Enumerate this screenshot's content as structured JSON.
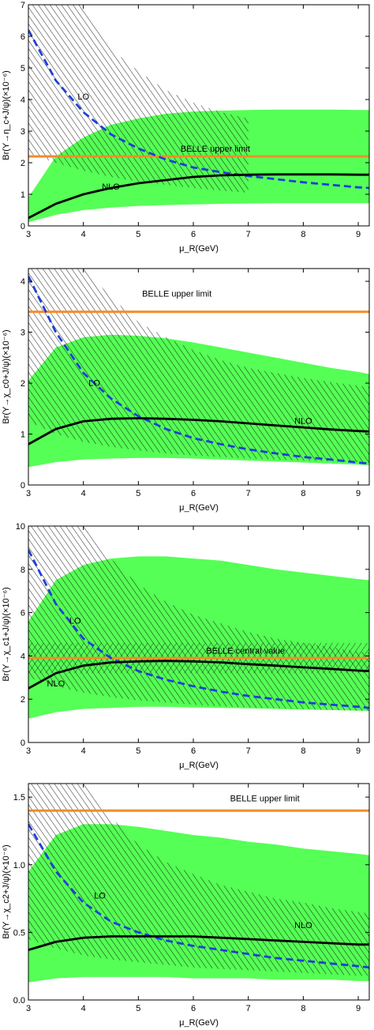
{
  "colors": {
    "nlo_band": "#55FF55",
    "lo_curve": "#1E3FD8",
    "nlo_curve": "#000000",
    "belle_line": "#F28C28",
    "hatch": "#000000"
  },
  "chart_data": [
    {
      "type": "line",
      "ylabel": "Br(Υ→η_c+J/ψ)(×10⁻⁶)",
      "xlabel": "μ_R(GeV)",
      "xlim": [
        3,
        9.2
      ],
      "ylim": [
        0,
        7
      ],
      "x_ticks": [
        "3",
        "4",
        "5",
        "6",
        "7",
        "8",
        "9"
      ],
      "y_ticks": [
        "0",
        "1",
        "2",
        "3",
        "4",
        "5",
        "6",
        "7"
      ],
      "annotations": {
        "lo": "LO",
        "nlo": "NLO",
        "belle": "BELLE  upper limit"
      },
      "annotation_pos": {
        "lo": [
          4.0,
          4.0
        ],
        "nlo": [
          4.5,
          1.15
        ],
        "belle": [
          6.4,
          2.35
        ]
      },
      "belle_value": 2.2,
      "x": [
        3.0,
        3.5,
        4.0,
        4.5,
        5.0,
        5.5,
        6.0,
        6.5,
        7.0,
        7.5,
        8.0,
        8.5,
        9.0,
        9.2
      ],
      "series": [
        {
          "name": "LO",
          "style": "dashed",
          "values": [
            6.2,
            4.6,
            3.6,
            2.9,
            2.45,
            2.1,
            1.85,
            1.7,
            1.58,
            1.48,
            1.38,
            1.3,
            1.22,
            1.2
          ]
        },
        {
          "name": "NLO",
          "style": "solid",
          "values": [
            0.25,
            0.7,
            1.0,
            1.2,
            1.35,
            1.45,
            1.55,
            1.6,
            1.62,
            1.63,
            1.63,
            1.63,
            1.62,
            1.62
          ]
        }
      ],
      "nlo_band": {
        "upper": [
          0.9,
          2.2,
          2.8,
          3.2,
          3.4,
          3.55,
          3.62,
          3.65,
          3.67,
          3.68,
          3.68,
          3.68,
          3.67,
          3.67
        ],
        "lower": [
          0.12,
          0.35,
          0.5,
          0.58,
          0.63,
          0.66,
          0.68,
          0.7,
          0.71,
          0.72,
          0.72,
          0.72,
          0.72,
          0.72
        ]
      },
      "lo_band": {
        "x": [
          3.0,
          3.5,
          4.0,
          4.5,
          5.0,
          5.5,
          6.0,
          6.5,
          7.0
        ],
        "upper": [
          7.0,
          7.0,
          7.0,
          5.6,
          4.9,
          4.3,
          3.9,
          3.6,
          3.4
        ],
        "lower": [
          2.3,
          2.0,
          1.75,
          1.55,
          1.4,
          1.3,
          1.2,
          1.12,
          1.05
        ]
      },
      "cross_hatch": false
    },
    {
      "type": "line",
      "ylabel": "Br(Υ→χ_c0+J/ψ)(×10⁻⁶)",
      "xlabel": "μ_R(GeV)",
      "xlim": [
        3,
        9.2
      ],
      "ylim": [
        0,
        4.25
      ],
      "x_ticks": [
        "3",
        "4",
        "5",
        "6",
        "7",
        "8",
        "9"
      ],
      "y_ticks": [
        "0",
        "1",
        "2",
        "3",
        "4"
      ],
      "annotations": {
        "lo": "LO",
        "nlo": "NLO",
        "belle": "BELLE  upper limit"
      },
      "annotation_pos": {
        "lo": [
          4.2,
          1.95
        ],
        "nlo": [
          8.0,
          1.2
        ],
        "belle": [
          5.7,
          3.7
        ]
      },
      "belle_value": 3.4,
      "x": [
        3.0,
        3.5,
        4.0,
        4.5,
        5.0,
        5.5,
        6.0,
        6.5,
        7.0,
        7.5,
        8.0,
        8.5,
        9.0,
        9.2
      ],
      "series": [
        {
          "name": "LO",
          "style": "dashed",
          "values": [
            4.1,
            3.0,
            2.2,
            1.7,
            1.35,
            1.1,
            0.92,
            0.8,
            0.7,
            0.62,
            0.55,
            0.5,
            0.44,
            0.42
          ]
        },
        {
          "name": "NLO",
          "style": "solid",
          "values": [
            0.8,
            1.1,
            1.25,
            1.3,
            1.31,
            1.3,
            1.28,
            1.25,
            1.21,
            1.17,
            1.13,
            1.09,
            1.06,
            1.05
          ]
        }
      ],
      "nlo_band": {
        "upper": [
          2.05,
          2.7,
          2.9,
          2.95,
          2.93,
          2.88,
          2.8,
          2.7,
          2.6,
          2.5,
          2.4,
          2.3,
          2.22,
          2.18
        ],
        "lower": [
          0.35,
          0.45,
          0.5,
          0.52,
          0.53,
          0.53,
          0.52,
          0.5,
          0.48,
          0.46,
          0.44,
          0.42,
          0.4,
          0.39
        ]
      },
      "lo_band": {
        "x": [
          3.0,
          3.5,
          4.0,
          4.5,
          5.0,
          5.5,
          6.0,
          6.5,
          7.0,
          7.5,
          8.0,
          8.5,
          9.0,
          9.2
        ],
        "upper": [
          4.25,
          4.25,
          4.25,
          3.7,
          3.2,
          2.9,
          2.65,
          2.45,
          2.3,
          2.2,
          2.1,
          2.02,
          1.95,
          1.92
        ],
        "lower": [
          1.25,
          1.0,
          0.85,
          0.75,
          0.68,
          0.62,
          0.58,
          0.55,
          0.52,
          0.5,
          0.48,
          0.46,
          0.45,
          0.44
        ]
      },
      "cross_hatch": false
    },
    {
      "type": "line",
      "ylabel": "Br(Υ→χ_c1+J/ψ)(×10⁻⁶)",
      "xlabel": "μ_R(GeV)",
      "xlim": [
        3,
        9.2
      ],
      "ylim": [
        0,
        10
      ],
      "x_ticks": [
        "3",
        "4",
        "5",
        "6",
        "7",
        "8",
        "9"
      ],
      "y_ticks": [
        "0",
        "2",
        "4",
        "6",
        "8",
        "10"
      ],
      "annotations": {
        "lo": "LO",
        "nlo": "NLO",
        "belle": "BELLE  central  value"
      },
      "annotation_pos": {
        "lo": [
          3.85,
          5.5
        ],
        "nlo": [
          3.5,
          2.6
        ],
        "belle": [
          6.95,
          4.1
        ]
      },
      "belle_value": 3.9,
      "x": [
        3.0,
        3.5,
        4.0,
        4.5,
        5.0,
        5.5,
        6.0,
        6.5,
        7.0,
        7.5,
        8.0,
        8.5,
        9.0,
        9.2
      ],
      "series": [
        {
          "name": "LO",
          "style": "dashed",
          "values": [
            8.9,
            6.4,
            4.8,
            3.9,
            3.3,
            2.9,
            2.6,
            2.35,
            2.15,
            2.0,
            1.85,
            1.75,
            1.65,
            1.6
          ]
        },
        {
          "name": "NLO",
          "style": "solid",
          "values": [
            2.5,
            3.2,
            3.55,
            3.7,
            3.75,
            3.77,
            3.75,
            3.7,
            3.62,
            3.55,
            3.47,
            3.4,
            3.32,
            3.3
          ]
        }
      ],
      "nlo_band": {
        "upper": [
          5.6,
          7.5,
          8.2,
          8.5,
          8.6,
          8.6,
          8.5,
          8.4,
          8.2,
          8.0,
          7.85,
          7.7,
          7.55,
          7.5
        ],
        "lower": [
          1.1,
          1.4,
          1.55,
          1.6,
          1.65,
          1.65,
          1.62,
          1.6,
          1.58,
          1.55,
          1.52,
          1.5,
          1.47,
          1.46
        ]
      },
      "lo_band": {
        "x": [
          3.0,
          3.5,
          4.0,
          4.5,
          5.0,
          5.5,
          6.0,
          6.5,
          7.0,
          7.5,
          8.0,
          8.5,
          9.0,
          9.2
        ],
        "upper": [
          10.0,
          10.0,
          10.0,
          8.5,
          7.3,
          6.5,
          5.9,
          5.5,
          5.1,
          4.8,
          4.6,
          4.4,
          4.2,
          4.15
        ],
        "lower": [
          3.0,
          2.6,
          2.3,
          2.1,
          1.95,
          1.85,
          1.75,
          1.68,
          1.62,
          1.58,
          1.54,
          1.5,
          1.47,
          1.46
        ]
      },
      "cross_hatch": true,
      "cross_band": [
        3.2,
        4.6
      ]
    },
    {
      "type": "line",
      "ylabel": "Br(Υ→χ_c2+J/ψ)(×10⁻⁶)",
      "xlabel": "μ_R(GeV)",
      "xlim": [
        3,
        9.2
      ],
      "ylim": [
        0,
        1.6
      ],
      "x_ticks": [
        "3",
        "4",
        "5",
        "6",
        "7",
        "8",
        "9"
      ],
      "y_ticks": [
        "0.0",
        "0.5",
        "1.0",
        "1.5"
      ],
      "annotations": {
        "lo": "LO",
        "nlo": "NLO",
        "belle": "BELLE  upper limit"
      },
      "annotation_pos": {
        "lo": [
          4.3,
          0.75
        ],
        "nlo": [
          8.0,
          0.53
        ],
        "belle": [
          7.3,
          1.47
        ]
      },
      "belle_value": 1.4,
      "x": [
        3.0,
        3.5,
        4.0,
        4.5,
        5.0,
        5.5,
        6.0,
        6.5,
        7.0,
        7.5,
        8.0,
        8.5,
        9.0,
        9.2
      ],
      "series": [
        {
          "name": "LO",
          "style": "dashed",
          "values": [
            1.3,
            0.95,
            0.72,
            0.58,
            0.5,
            0.44,
            0.4,
            0.37,
            0.34,
            0.31,
            0.29,
            0.27,
            0.25,
            0.24
          ]
        },
        {
          "name": "NLO",
          "style": "solid",
          "values": [
            0.37,
            0.43,
            0.46,
            0.47,
            0.47,
            0.47,
            0.47,
            0.46,
            0.45,
            0.44,
            0.43,
            0.42,
            0.41,
            0.41
          ]
        }
      ],
      "nlo_band": {
        "upper": [
          0.95,
          1.22,
          1.3,
          1.3,
          1.28,
          1.25,
          1.22,
          1.2,
          1.17,
          1.15,
          1.12,
          1.1,
          1.08,
          1.07
        ],
        "lower": [
          0.13,
          0.16,
          0.17,
          0.17,
          0.17,
          0.17,
          0.16,
          0.16,
          0.16,
          0.15,
          0.15,
          0.15,
          0.14,
          0.14
        ]
      },
      "lo_band": {
        "x": [
          3.0,
          3.5,
          4.0,
          4.5,
          5.0,
          5.5,
          6.0,
          6.5,
          7.0,
          7.5,
          8.0,
          8.5,
          9.0,
          9.2
        ],
        "upper": [
          1.6,
          1.6,
          1.6,
          1.35,
          1.15,
          1.02,
          0.93,
          0.85,
          0.8,
          0.75,
          0.72,
          0.68,
          0.65,
          0.64
        ],
        "lower": [
          0.45,
          0.38,
          0.33,
          0.3,
          0.28,
          0.26,
          0.24,
          0.23,
          0.22,
          0.21,
          0.2,
          0.19,
          0.18,
          0.18
        ]
      },
      "cross_hatch": false
    }
  ]
}
